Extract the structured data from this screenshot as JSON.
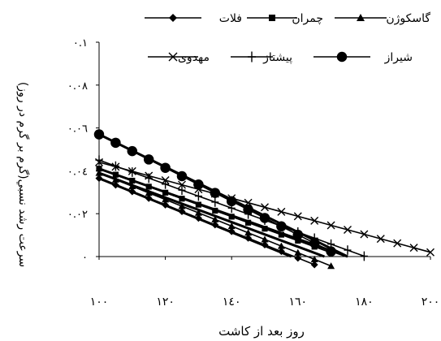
{
  "chart_data": {
    "type": "line",
    "title": "",
    "xlabel": "روز بعد از کاشت",
    "ylabel": "سرعت رشد نسبي(گرم بر گرم در روز)",
    "xlim": [
      100,
      200
    ],
    "ylim": [
      0,
      0.1
    ],
    "x_ticks": [
      100,
      120,
      140,
      160,
      180,
      200
    ],
    "x_tick_labels": [
      "۱۰۰",
      "۱۲۰",
      "۱٤۰",
      "۱٦۰",
      "۱۸۰",
      "۲۰۰"
    ],
    "y_ticks": [
      0,
      0.02,
      0.04,
      0.06,
      0.08,
      0.1
    ],
    "y_tick_labels": [
      "۰",
      "۰.۰۲",
      "۰.۰٤",
      "۰.۰٦",
      "۰.۰۸",
      "۰.۱"
    ],
    "legend_position": "top",
    "series": [
      {
        "name": "فلات",
        "marker": "diamond",
        "color": "#000000",
        "x": [
          100,
          105,
          110,
          115,
          120,
          125,
          130,
          135,
          140,
          145,
          150,
          155,
          160,
          165
        ],
        "y": [
          0.0365,
          0.0334,
          0.0303,
          0.0272,
          0.0241,
          0.021,
          0.0179,
          0.0148,
          0.0117,
          0.0086,
          0.0055,
          0.0024,
          -0.0007,
          -0.0038
        ]
      },
      {
        "name": "چمران",
        "marker": "square",
        "color": "#000000",
        "x": [
          100,
          105,
          110,
          115,
          120,
          125,
          130,
          135,
          140,
          145,
          150,
          155,
          160,
          165,
          170
        ],
        "y": [
          0.041,
          0.0382,
          0.0354,
          0.0326,
          0.0298,
          0.027,
          0.0242,
          0.0214,
          0.0186,
          0.0158,
          0.013,
          0.0102,
          0.0074,
          0.0046,
          0.0018
        ]
      },
      {
        "name": "گاسکوژن",
        "marker": "triangle",
        "color": "#000000",
        "x": [
          100,
          105,
          110,
          115,
          120,
          125,
          130,
          135,
          140,
          145,
          150,
          155,
          160,
          165,
          170
        ],
        "y": [
          0.039,
          0.0359,
          0.0328,
          0.0297,
          0.0266,
          0.0235,
          0.0204,
          0.0173,
          0.0142,
          0.0111,
          0.008,
          0.0049,
          0.0018,
          -0.0013,
          -0.0044
        ]
      },
      {
        "name": "مهدوی",
        "marker": "x",
        "color": "#000000",
        "x": [
          100,
          105,
          110,
          115,
          120,
          125,
          130,
          135,
          140,
          145,
          150,
          155,
          160,
          165,
          170,
          175,
          180,
          185,
          190,
          195,
          200
        ],
        "y": [
          0.044,
          0.0419,
          0.0398,
          0.0377,
          0.0356,
          0.0335,
          0.0314,
          0.0293,
          0.0272,
          0.0251,
          0.023,
          0.0209,
          0.0188,
          0.0167,
          0.0146,
          0.0125,
          0.0104,
          0.0083,
          0.0062,
          0.0041,
          0.002
        ]
      },
      {
        "name": "پیشتاز",
        "marker": "plus",
        "color": "#000000",
        "x": [
          100,
          105,
          110,
          115,
          120,
          125,
          130,
          135,
          140,
          145,
          150,
          155,
          160,
          165,
          170,
          175,
          180
        ],
        "y": [
          0.045,
          0.0422,
          0.0394,
          0.0366,
          0.0338,
          0.031,
          0.0282,
          0.0254,
          0.0226,
          0.0198,
          0.017,
          0.0142,
          0.0114,
          0.0086,
          0.0058,
          0.003,
          0.0002
        ]
      },
      {
        "name": "شیراز",
        "marker": "circle",
        "color": "#000000",
        "x": [
          100,
          105,
          110,
          115,
          120,
          125,
          130,
          135,
          140,
          145,
          150,
          155,
          160,
          165,
          170
        ],
        "y": [
          0.057,
          0.0531,
          0.0492,
          0.0453,
          0.0414,
          0.0375,
          0.0336,
          0.0297,
          0.0258,
          0.0219,
          0.018,
          0.0141,
          0.0102,
          0.0063,
          0.0024
        ]
      }
    ],
    "trendlines": [
      {
        "series": "فلات",
        "x": [
          100,
          158
        ],
        "y": [
          0.0365,
          0.0
        ]
      },
      {
        "series": "چمران",
        "x": [
          100,
          175
        ],
        "y": [
          0.041,
          0.0
        ]
      },
      {
        "series": "گاسکوژن",
        "x": [
          100,
          168
        ],
        "y": [
          0.039,
          0.0
        ]
      },
      {
        "series": "شیراز",
        "x": [
          100,
          175
        ],
        "y": [
          0.057,
          0.0
        ]
      }
    ]
  }
}
